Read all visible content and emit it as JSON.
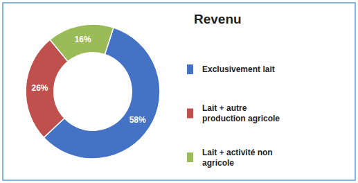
{
  "chart_data": {
    "type": "pie",
    "title": "Revenu",
    "categories": [
      "Exclusivement lait",
      "Lait + autre\nproduction agricole",
      "Lait + activité non\nagricole"
    ],
    "values": [
      58,
      26,
      16
    ],
    "value_labels": [
      "58%",
      "26%",
      "16%"
    ],
    "colors": [
      "#4472C4",
      "#C0504D",
      "#9BBB59"
    ],
    "data_labels": true,
    "legend": "right"
  }
}
